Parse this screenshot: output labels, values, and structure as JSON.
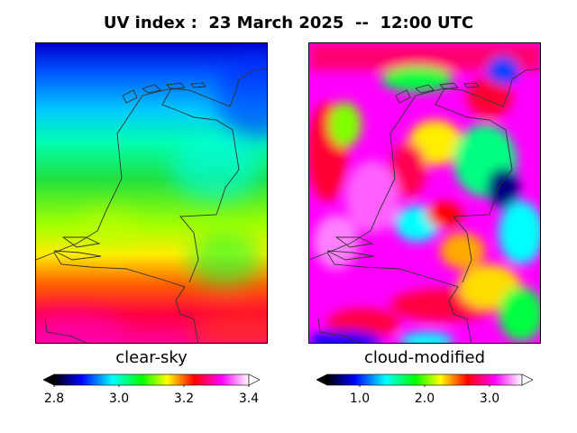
{
  "title": "UV index :  23 March 2025  --  12:00 UTC",
  "panels": [
    {
      "label": "clear-sky",
      "colorbar": {
        "min": 2.8,
        "max": 3.4,
        "ticks": [
          "2.8",
          "3.0",
          "3.2",
          "3.4"
        ],
        "extend": "both"
      }
    },
    {
      "label": "cloud-modified",
      "colorbar": {
        "min": 0.5,
        "max": 3.5,
        "ticks": [
          "1.0",
          "2.0",
          "3.0"
        ],
        "extend": "both"
      }
    }
  ],
  "colormap": [
    "#000000",
    "#0000ff",
    "#00ffff",
    "#00ff00",
    "#ffff00",
    "#ff0000",
    "#ff00ff",
    "#ffffff"
  ]
}
